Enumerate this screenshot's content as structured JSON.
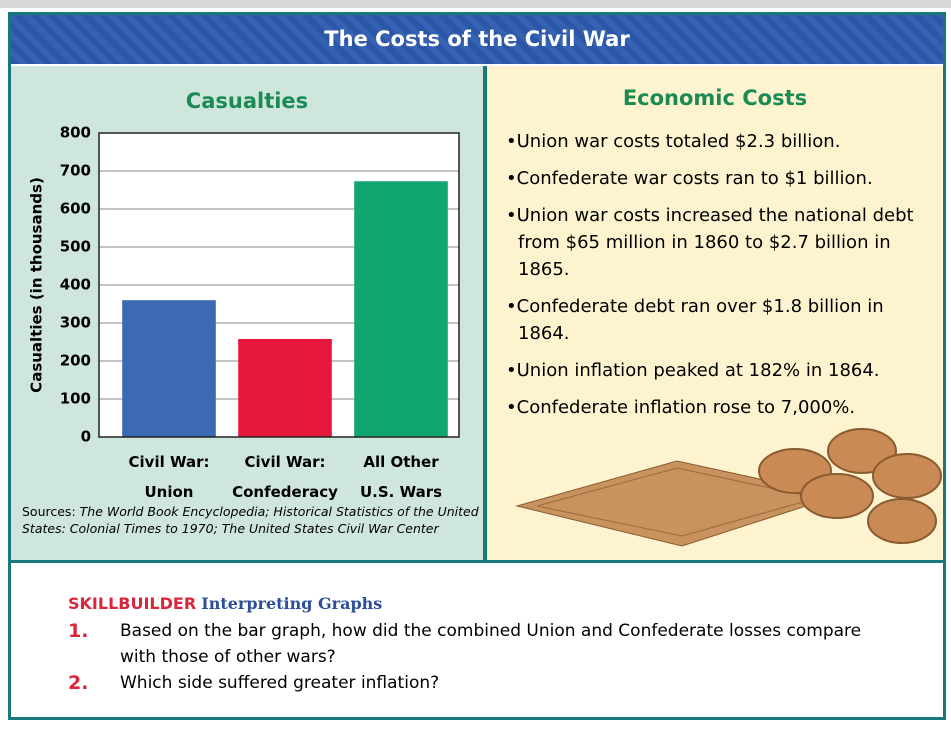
{
  "title": "The Costs of the Civil War",
  "chart_data": {
    "type": "bar",
    "title": "Casualties",
    "y_label": "Casualties (in thousands)",
    "categories": [
      "Civil War:\nUnion",
      "Civil War:\nConfederacy",
      "All Other\nU.S. Wars"
    ],
    "values": [
      360,
      258,
      673
    ],
    "colors": [
      "#3b69b3",
      "#e6173c",
      "#10a66e"
    ],
    "ylim": [
      0,
      800
    ],
    "yticks": [
      0,
      100,
      200,
      300,
      400,
      500,
      600,
      700,
      800
    ],
    "grid": true,
    "sources_label": "Sources:",
    "sources": "The World Book Encyclopedia; Historical Statistics of the United States: Colonial Times to 1970; The United States Civil War Center"
  },
  "economic_costs": {
    "title": "Economic Costs",
    "items": [
      "Union war costs totaled $2.3 billion.",
      "Confederate war costs ran to $1 billion.",
      "Union war costs increased the national debt from $65 million in 1860 to $2.7 billion in 1865.",
      "Confederate debt ran over $1.8 billion in 1864.",
      "Union inflation peaked at 182% in 1864.",
      "Confederate inflation rose to 7,000%."
    ]
  },
  "skillbuilder": {
    "label": "SKILLBUILDER",
    "title": "Interpreting Graphs",
    "questions": [
      {
        "number": "1.",
        "text": "Based on the bar graph, how did the combined Union and Confederate losses compare with those of other wars?"
      },
      {
        "number": "2.",
        "text": "Which side suffered greater inflation?"
      }
    ]
  }
}
